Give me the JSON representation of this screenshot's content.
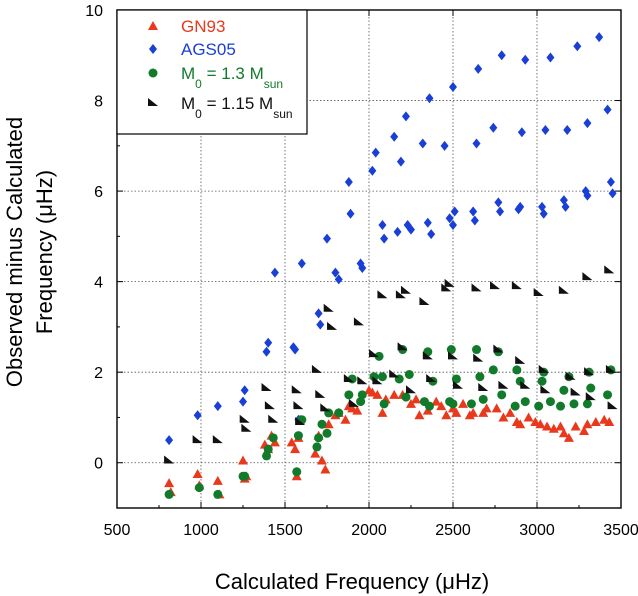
{
  "chart_data": {
    "type": "scatter",
    "title": "",
    "xlabel": "Calculated Frequency (μHz)",
    "ylabel_line1": "Observed minus Calculated",
    "ylabel_line2": "Frequency (μHz)",
    "xlim": [
      500,
      3500
    ],
    "ylim": [
      -1,
      10
    ],
    "x_ticks": [
      500,
      1000,
      1500,
      2000,
      2500,
      3000,
      3500
    ],
    "y_ticks": [
      0,
      2,
      4,
      6,
      8,
      10
    ],
    "grid": "dotted",
    "legend_position": "top-left",
    "series": [
      {
        "name": "GN93",
        "name_main": "GN93",
        "name_sub": "",
        "name_tail": "",
        "marker": "triangle",
        "color": "#e8391d",
        "points": [
          [
            810,
            -0.45
          ],
          [
            820,
            -0.65
          ],
          [
            980,
            -0.25
          ],
          [
            990,
            -0.5
          ],
          [
            1100,
            -0.4
          ],
          [
            1110,
            -0.7
          ],
          [
            1250,
            0.05
          ],
          [
            1260,
            -0.35
          ],
          [
            1270,
            -0.3
          ],
          [
            1380,
            0.4
          ],
          [
            1400,
            0.3
          ],
          [
            1420,
            0.6
          ],
          [
            1440,
            0.45
          ],
          [
            1540,
            0.45
          ],
          [
            1560,
            0.3
          ],
          [
            1570,
            -0.3
          ],
          [
            1580,
            0.55
          ],
          [
            1590,
            0.95
          ],
          [
            1680,
            0.2
          ],
          [
            1700,
            0.6
          ],
          [
            1720,
            0.05
          ],
          [
            1740,
            -0.15
          ],
          [
            1760,
            0.85
          ],
          [
            1800,
            1.05
          ],
          [
            1820,
            1.1
          ],
          [
            1860,
            0.95
          ],
          [
            1880,
            1.25
          ],
          [
            1900,
            1.2
          ],
          [
            1930,
            1.15
          ],
          [
            2000,
            1.6
          ],
          [
            2020,
            1.55
          ],
          [
            2050,
            1.5
          ],
          [
            2080,
            1.1
          ],
          [
            2100,
            1.4
          ],
          [
            2150,
            1.5
          ],
          [
            2200,
            1.5
          ],
          [
            2250,
            1.3
          ],
          [
            2280,
            1.4
          ],
          [
            2300,
            1.05
          ],
          [
            2350,
            1.15
          ],
          [
            2400,
            1.35
          ],
          [
            2430,
            1.25
          ],
          [
            2460,
            1.05
          ],
          [
            2500,
            1.2
          ],
          [
            2520,
            1.1
          ],
          [
            2560,
            1.3
          ],
          [
            2600,
            1.05
          ],
          [
            2620,
            1.1
          ],
          [
            2680,
            1.1
          ],
          [
            2700,
            1.2
          ],
          [
            2760,
            1.2
          ],
          [
            2800,
            1.0
          ],
          [
            2840,
            1.1
          ],
          [
            2880,
            0.9
          ],
          [
            2900,
            0.85
          ],
          [
            2950,
            1.0
          ],
          [
            2990,
            0.9
          ],
          [
            3020,
            0.85
          ],
          [
            3060,
            0.8
          ],
          [
            3100,
            0.75
          ],
          [
            3140,
            0.8
          ],
          [
            3160,
            0.65
          ],
          [
            3190,
            0.55
          ],
          [
            3230,
            0.8
          ],
          [
            3280,
            0.7
          ],
          [
            3300,
            0.85
          ],
          [
            3350,
            0.9
          ],
          [
            3400,
            0.95
          ],
          [
            3430,
            0.9
          ]
        ]
      },
      {
        "name": "AGS05",
        "name_main": "AGS05",
        "name_sub": "",
        "name_tail": "",
        "marker": "diamond",
        "color": "#1a3fd6",
        "points": [
          [
            810,
            0.5
          ],
          [
            980,
            1.05
          ],
          [
            1100,
            1.25
          ],
          [
            1250,
            1.35
          ],
          [
            1260,
            1.6
          ],
          [
            1390,
            2.45
          ],
          [
            1400,
            2.65
          ],
          [
            1440,
            4.2
          ],
          [
            1550,
            2.55
          ],
          [
            1560,
            2.5
          ],
          [
            1580,
            0.95
          ],
          [
            1600,
            4.4
          ],
          [
            1700,
            3.3
          ],
          [
            1710,
            3.05
          ],
          [
            1750,
            4.95
          ],
          [
            1800,
            4.2
          ],
          [
            1820,
            4.05
          ],
          [
            1880,
            6.2
          ],
          [
            1890,
            5.5
          ],
          [
            1950,
            4.4
          ],
          [
            1960,
            4.3
          ],
          [
            2020,
            6.45
          ],
          [
            2040,
            6.85
          ],
          [
            2080,
            5.25
          ],
          [
            2090,
            4.95
          ],
          [
            2150,
            7.2
          ],
          [
            2170,
            5.1
          ],
          [
            2190,
            6.65
          ],
          [
            2220,
            7.65
          ],
          [
            2230,
            5.25
          ],
          [
            2250,
            5.15
          ],
          [
            2320,
            7.05
          ],
          [
            2350,
            5.3
          ],
          [
            2370,
            5.05
          ],
          [
            2360,
            8.05
          ],
          [
            2450,
            7.0
          ],
          [
            2480,
            5.4
          ],
          [
            2500,
            5.25
          ],
          [
            2510,
            5.55
          ],
          [
            2500,
            8.3
          ],
          [
            2620,
            5.55
          ],
          [
            2630,
            5.35
          ],
          [
            2640,
            7.05
          ],
          [
            2650,
            8.7
          ],
          [
            2740,
            7.4
          ],
          [
            2770,
            5.75
          ],
          [
            2780,
            5.55
          ],
          [
            2790,
            9.0
          ],
          [
            2890,
            5.6
          ],
          [
            2900,
            5.65
          ],
          [
            2910,
            7.3
          ],
          [
            2930,
            8.9
          ],
          [
            3030,
            5.65
          ],
          [
            3040,
            5.5
          ],
          [
            3050,
            7.35
          ],
          [
            3080,
            8.95
          ],
          [
            3160,
            5.8
          ],
          [
            3170,
            5.65
          ],
          [
            3180,
            7.35
          ],
          [
            3240,
            9.2
          ],
          [
            3290,
            6.0
          ],
          [
            3300,
            5.9
          ],
          [
            3300,
            7.5
          ],
          [
            3370,
            9.4
          ],
          [
            3420,
            7.8
          ],
          [
            3440,
            6.2
          ],
          [
            3450,
            5.95
          ]
        ]
      },
      {
        "name": "M0 = 1.3 Msun",
        "name_main": "M",
        "name_sub": "0",
        "name_tail": " = 1.3 M",
        "name_sub2": "sun",
        "marker": "circle",
        "color": "#127a2b",
        "points": [
          [
            810,
            -0.7
          ],
          [
            990,
            -0.55
          ],
          [
            1100,
            -0.7
          ],
          [
            1260,
            -0.3
          ],
          [
            1250,
            -0.3
          ],
          [
            1390,
            0.15
          ],
          [
            1400,
            0.3
          ],
          [
            1430,
            0.55
          ],
          [
            1570,
            -0.2
          ],
          [
            1580,
            0.6
          ],
          [
            1600,
            0.95
          ],
          [
            1690,
            0.35
          ],
          [
            1700,
            0.55
          ],
          [
            1720,
            0.85
          ],
          [
            1750,
            0.65
          ],
          [
            1760,
            1.1
          ],
          [
            1820,
            1.1
          ],
          [
            1880,
            1.5
          ],
          [
            1900,
            1.85
          ],
          [
            1950,
            1.35
          ],
          [
            1960,
            1.5
          ],
          [
            2030,
            1.9
          ],
          [
            2060,
            2.35
          ],
          [
            2080,
            1.9
          ],
          [
            2090,
            1.3
          ],
          [
            2180,
            1.85
          ],
          [
            2200,
            2.5
          ],
          [
            2220,
            1.45
          ],
          [
            2240,
            1.95
          ],
          [
            2330,
            1.35
          ],
          [
            2350,
            2.45
          ],
          [
            2360,
            1.25
          ],
          [
            2380,
            1.8
          ],
          [
            2480,
            1.35
          ],
          [
            2490,
            2.5
          ],
          [
            2500,
            1.3
          ],
          [
            2520,
            1.85
          ],
          [
            2610,
            1.3
          ],
          [
            2640,
            2.5
          ],
          [
            2660,
            1.9
          ],
          [
            2680,
            1.4
          ],
          [
            2740,
            2.05
          ],
          [
            2770,
            2.45
          ],
          [
            2790,
            1.5
          ],
          [
            2870,
            1.25
          ],
          [
            2880,
            2.05
          ],
          [
            2900,
            1.8
          ],
          [
            2930,
            1.35
          ],
          [
            3010,
            1.25
          ],
          [
            3030,
            1.8
          ],
          [
            3040,
            2.0
          ],
          [
            3080,
            1.35
          ],
          [
            3140,
            1.25
          ],
          [
            3160,
            1.6
          ],
          [
            3190,
            1.9
          ],
          [
            3220,
            1.3
          ],
          [
            3300,
            1.3
          ],
          [
            3310,
            2.0
          ],
          [
            3320,
            1.65
          ],
          [
            3420,
            1.5
          ],
          [
            3440,
            2.05
          ]
        ]
      },
      {
        "name": "M0 = 1.15 Msun",
        "name_main": "M",
        "name_sub": "0",
        "name_tail": " = 1.15 M",
        "name_sub2": "sun",
        "marker": "halftriangle",
        "color": "#111111",
        "points": [
          [
            810,
            0.05
          ],
          [
            980,
            0.5
          ],
          [
            1100,
            0.5
          ],
          [
            1260,
            0.95
          ],
          [
            1270,
            0.75
          ],
          [
            1390,
            1.65
          ],
          [
            1410,
            1.25
          ],
          [
            1430,
            0.95
          ],
          [
            1570,
            1.6
          ],
          [
            1580,
            1.25
          ],
          [
            1590,
            0.9
          ],
          [
            1690,
            2.05
          ],
          [
            1710,
            1.5
          ],
          [
            1740,
            1.2
          ],
          [
            1760,
            3.4
          ],
          [
            1780,
            3.0
          ],
          [
            1880,
            1.85
          ],
          [
            1910,
            1.3
          ],
          [
            1940,
            3.1
          ],
          [
            1960,
            1.8
          ],
          [
            2030,
            2.4
          ],
          [
            2050,
            1.8
          ],
          [
            2080,
            3.7
          ],
          [
            2150,
            1.95
          ],
          [
            2190,
            3.7
          ],
          [
            2200,
            2.55
          ],
          [
            2220,
            3.8
          ],
          [
            2250,
            1.6
          ],
          [
            2330,
            3.55
          ],
          [
            2350,
            2.35
          ],
          [
            2370,
            1.85
          ],
          [
            2460,
            3.85
          ],
          [
            2480,
            3.95
          ],
          [
            2500,
            2.35
          ],
          [
            2530,
            1.7
          ],
          [
            2640,
            3.85
          ],
          [
            2650,
            2.3
          ],
          [
            2680,
            1.65
          ],
          [
            2750,
            3.9
          ],
          [
            2770,
            2.5
          ],
          [
            2800,
            1.7
          ],
          [
            2880,
            3.9
          ],
          [
            2900,
            2.25
          ],
          [
            2930,
            1.7
          ],
          [
            3010,
            3.75
          ],
          [
            3040,
            2.05
          ],
          [
            3050,
            1.6
          ],
          [
            3160,
            3.8
          ],
          [
            3200,
            1.9
          ],
          [
            3230,
            1.55
          ],
          [
            3300,
            4.1
          ],
          [
            3310,
            2.0
          ],
          [
            3320,
            1.45
          ],
          [
            3430,
            4.25
          ],
          [
            3440,
            2.05
          ],
          [
            3450,
            1.25
          ]
        ]
      }
    ]
  }
}
